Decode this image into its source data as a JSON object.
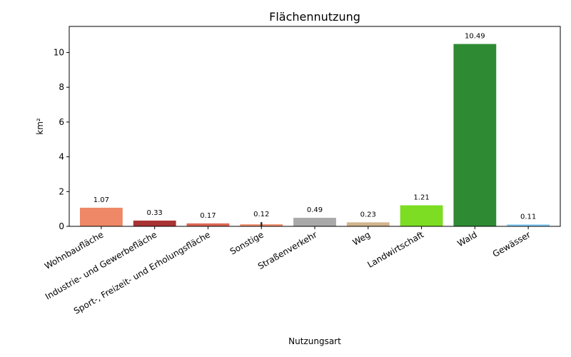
{
  "chart_data": {
    "type": "bar",
    "title": "Flächennutzung",
    "xlabel": "Nutzungsart",
    "ylabel": "km²",
    "categories": [
      "Wohnbaufläche",
      "Industrie- und Gewerbefläche",
      "Sport-, Freizeit- und Erholungsfläche",
      "Sonstige",
      "Straßenverkehr",
      "Weg",
      "Landwirtschaft",
      "Wald",
      "Gewässer"
    ],
    "values": [
      1.07,
      0.33,
      0.17,
      0.12,
      0.49,
      0.23,
      1.21,
      10.49,
      0.11
    ],
    "data_labels": [
      "1.07",
      "0.33",
      "0.17",
      "0.12",
      "0.49",
      "0.23",
      "1.21",
      "10.49",
      "0.11"
    ],
    "colors": [
      "#ee8866",
      "#aa3333",
      "#dd6655",
      "#f09070",
      "#a9a9a9",
      "#d2b48c",
      "#7cdd22",
      "#2e8b33",
      "#87cefa"
    ],
    "error_bars": [
      null,
      null,
      null,
      0.12,
      null,
      null,
      null,
      null,
      null
    ],
    "ylim": [
      0,
      11.5
    ],
    "yticks": [
      0,
      2,
      4,
      6,
      8,
      10
    ],
    "ytick_labels": [
      "0",
      "2",
      "4",
      "6",
      "8",
      "10"
    ],
    "grid": false
  }
}
